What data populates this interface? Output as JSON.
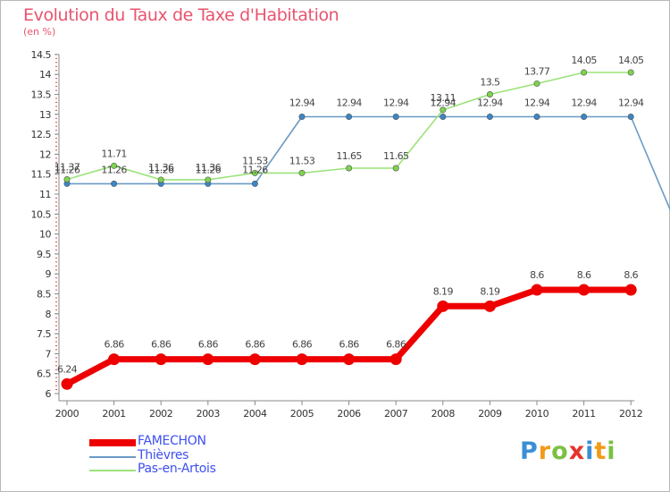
{
  "header": {
    "title": "Evolution du Taux de Taxe d'Habitation",
    "subtitle": "(en %)"
  },
  "chart_data": {
    "type": "line",
    "title": "Evolution du Taux de Taxe d'Habitation",
    "ylabel": "(en %)",
    "xlabel": "",
    "ylim": [
      6,
      14.5
    ],
    "yticks": [
      "6",
      "6.5",
      "7",
      "7.5",
      "8",
      "8.5",
      "9",
      "9.5",
      "10",
      "10.5",
      "11",
      "11.5",
      "12",
      "12.5",
      "13",
      "13.5",
      "14",
      "14.5"
    ],
    "categories": [
      "2000",
      "2001",
      "2002",
      "2003",
      "2004",
      "2005",
      "2006",
      "2007",
      "2008",
      "2009",
      "2010",
      "2011",
      "2012"
    ],
    "grid": false,
    "legend_position": "bottom-left",
    "series": [
      {
        "name": "Thièvres",
        "color": "#6a9ac4",
        "point_color": "#3b86c6",
        "values": [
          11.26,
          11.26,
          11.26,
          11.26,
          11.26,
          12.94,
          12.94,
          12.94,
          12.94,
          12.94,
          12.94,
          12.94,
          12.94
        ],
        "labels": [
          "11.26",
          "11.26",
          "11.26",
          "11.26",
          "11.26",
          "12.94",
          "12.94",
          "12.94",
          "12.94",
          "12.94",
          "12.94",
          "12.94",
          "12.94"
        ],
        "trailing_value": 10.3
      },
      {
        "name": "Pas-en-Artois",
        "color": "#9be37a",
        "point_color": "#7ed34e",
        "values": [
          11.37,
          11.71,
          11.36,
          11.36,
          11.53,
          11.53,
          11.65,
          11.65,
          13.11,
          13.5,
          13.77,
          14.05,
          14.05
        ],
        "labels": [
          "11.37",
          "11.71",
          "11.36",
          "11.36",
          "11.53",
          "11.53",
          "11.65",
          "11.65",
          "13.11",
          "13.5",
          "13.77",
          "14.05",
          "14.05"
        ]
      },
      {
        "name": "FAMECHON",
        "color": "#ee0000",
        "point_color": "#ee0000",
        "values": [
          6.24,
          6.86,
          6.86,
          6.86,
          6.86,
          6.86,
          6.86,
          6.86,
          8.19,
          8.19,
          8.6,
          8.6,
          8.6
        ],
        "labels": [
          "6.24",
          "6.86",
          "6.86",
          "6.86",
          "6.86",
          "6.86",
          "6.86",
          "6.86",
          "8.19",
          "8.19",
          "8.6",
          "8.6",
          "8.6"
        ]
      }
    ]
  },
  "legend": {
    "items": [
      {
        "label": "FAMECHON",
        "color": "#ee0000",
        "thickness": "thick"
      },
      {
        "label": "Thièvres",
        "color": "#6a9ac4",
        "thickness": "thin"
      },
      {
        "label": "Pas-en-Artois",
        "color": "#9be37a",
        "thickness": "thin"
      }
    ]
  },
  "logo": {
    "letters": [
      {
        "char": "P",
        "color": "#3a8fd6"
      },
      {
        "char": "r",
        "color": "#f29a1a"
      },
      {
        "char": "o",
        "color": "#7ac142"
      },
      {
        "char": "x",
        "color": "#e5342d"
      },
      {
        "char": "i",
        "color": "#3a8fd6"
      },
      {
        "char": "t",
        "color": "#f29a1a"
      },
      {
        "char": "i",
        "color": "#7ac142"
      }
    ]
  }
}
